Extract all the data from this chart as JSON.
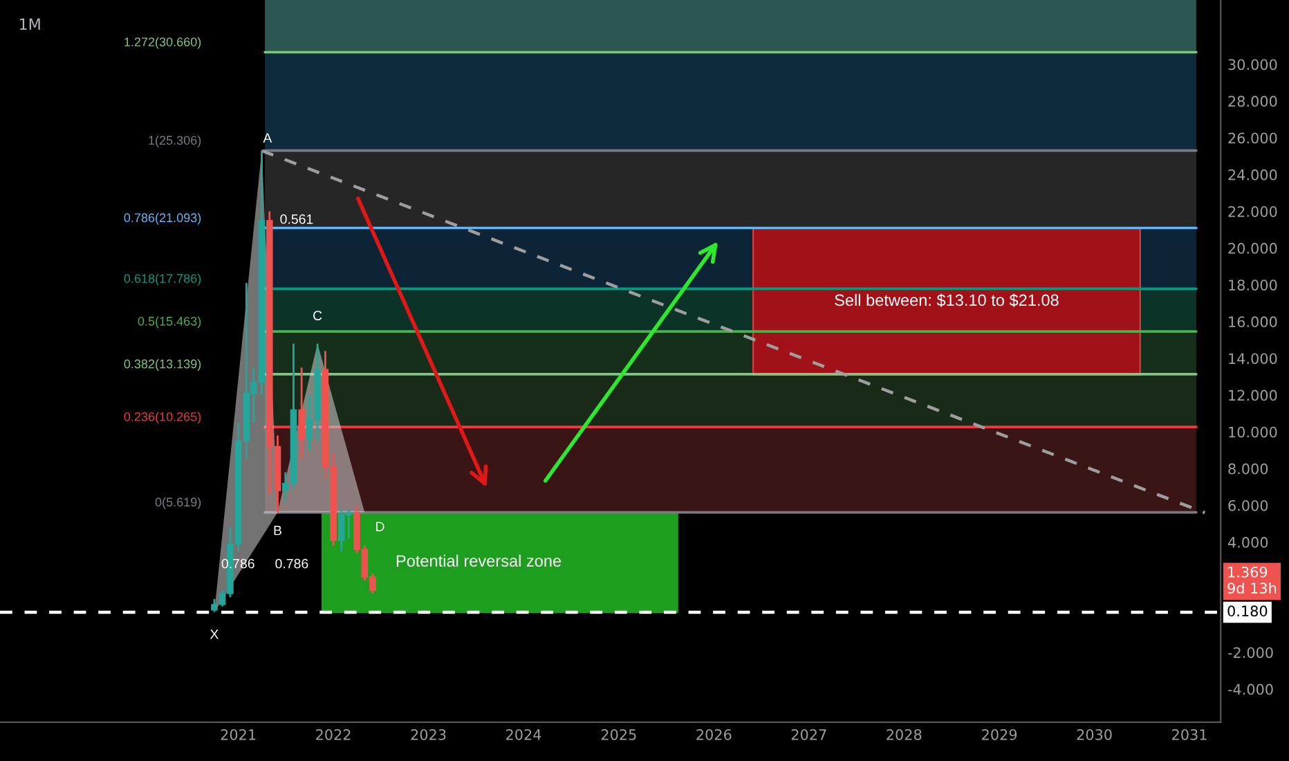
{
  "chart_data": {
    "type": "candlestick",
    "title": "1M",
    "x": [
      "2020-10",
      "2020-11",
      "2020-12",
      "2021-01",
      "2021-02",
      "2021-03",
      "2021-04",
      "2021-05",
      "2021-06",
      "2021-07",
      "2021-08",
      "2021-09",
      "2021-10",
      "2021-11",
      "2021-12",
      "2022-01",
      "2022-02",
      "2022-03",
      "2022-04",
      "2022-05",
      "2022-06"
    ],
    "ohlc": [
      [
        0.3,
        0.9,
        0.2,
        0.6
      ],
      [
        0.6,
        1.4,
        0.5,
        1.2
      ],
      [
        1.2,
        4.8,
        1.0,
        3.9
      ],
      [
        3.9,
        10.5,
        3.5,
        9.5
      ],
      [
        9.5,
        18.1,
        8.5,
        12.1
      ],
      [
        12.1,
        13.5,
        10.5,
        12.7
      ],
      [
        12.7,
        25.306,
        12.0,
        21.5
      ],
      [
        21.5,
        22.0,
        6.6,
        9.2
      ],
      [
        9.2,
        9.8,
        5.62,
        6.8
      ],
      [
        6.8,
        7.8,
        6.2,
        7.2
      ],
      [
        7.2,
        14.8,
        6.9,
        11.2
      ],
      [
        11.2,
        13.5,
        8.5,
        9.6
      ],
      [
        9.6,
        12.0,
        9.0,
        10.7
      ],
      [
        10.7,
        14.8,
        9.5,
        13.4
      ],
      [
        13.4,
        14.4,
        7.5,
        8.1
      ],
      [
        8.1,
        8.8,
        3.8,
        4.1
      ],
      [
        4.1,
        5.8,
        3.5,
        5.5
      ],
      [
        5.5,
        5.8,
        4.2,
        5.6
      ],
      [
        5.6,
        6.0,
        3.4,
        3.6
      ],
      [
        3.6,
        3.8,
        1.9,
        2.1
      ],
      [
        2.1,
        2.3,
        1.2,
        1.369
      ]
    ],
    "colors": [
      "#26a69a",
      "#26a69a",
      "#26a69a",
      "#26a69a",
      "#26a69a",
      "#26a69a",
      "#26a69a",
      "#ef5350",
      "#ef5350",
      "#26a69a",
      "#26a69a",
      "#ef5350",
      "#26a69a",
      "#26a69a",
      "#ef5350",
      "#ef5350",
      "#26a69a",
      "#26a69a",
      "#ef5350",
      "#ef5350",
      "#ef5350"
    ],
    "series": [
      {
        "type": "line",
        "color": "#9e9e9e",
        "line_style": "dashed",
        "x": [
          "2021-04",
          "2031-03"
        ],
        "values": [
          25.3,
          5.6
        ]
      }
    ],
    "ref_lines": [
      {
        "axis": "y",
        "value": 30.66,
        "label": "1.272(30.660)",
        "color": "#81c784"
      },
      {
        "axis": "y",
        "value": 25.306,
        "label": "1(25.306)",
        "color": "#787b86"
      },
      {
        "axis": "y",
        "value": 21.093,
        "label": "0.786(21.093)",
        "color": "#64b5f6"
      },
      {
        "axis": "y",
        "value": 17.786,
        "label": "0.618(17.786)",
        "color": "#089981"
      },
      {
        "axis": "y",
        "value": 15.463,
        "label": "0.5(15.463)",
        "color": "#4caf50"
      },
      {
        "axis": "y",
        "value": 13.139,
        "label": "0.382(13.139)",
        "color": "#81c784"
      },
      {
        "axis": "y",
        "value": 10.265,
        "label": "0.236(10.265)",
        "color": "#f23645"
      },
      {
        "axis": "y",
        "value": 5.619,
        "label": "0(5.619)",
        "color": "#787b86"
      },
      {
        "axis": "y",
        "value": 0.18,
        "label": "0.180",
        "color": "#ffffff",
        "line_style": "dashed"
      }
    ],
    "bands": [
      {
        "axis": "y",
        "from": 30.66,
        "to": 33.5,
        "color": "#2b5652"
      },
      {
        "axis": "y",
        "from": 25.306,
        "to": 30.66,
        "color": "#0e2a3d"
      },
      {
        "axis": "y",
        "from": 21.093,
        "to": 25.306,
        "color": "#262626"
      },
      {
        "axis": "y",
        "from": 17.786,
        "to": 21.093,
        "color": "#0d2336"
      },
      {
        "axis": "y",
        "from": 15.463,
        "to": 17.786,
        "color": "#0c3328"
      },
      {
        "axis": "y",
        "from": 13.139,
        "to": 15.463,
        "color": "#162f1a"
      },
      {
        "axis": "y",
        "from": 10.265,
        "to": 13.139,
        "color": "#1a2a18"
      },
      {
        "axis": "y",
        "from": 5.619,
        "to": 10.265,
        "color": "#3a1515"
      },
      {
        "axis": "y",
        "from": 0.18,
        "to": 5.62,
        "label": "Potential reversal zone",
        "color": "#1e9e1e"
      },
      {
        "axis": "y",
        "from": 13.1,
        "to": 21.08,
        "label": "Sell between: $13.10 to $21.08",
        "color": "#a01218"
      }
    ],
    "annotations": [
      {
        "text": "X",
        "x": "2020-10",
        "y": 0.18
      },
      {
        "text": "A",
        "x": "2021-04",
        "y": 25.306
      },
      {
        "text": "B",
        "x": "2021-06",
        "y": 5.62
      },
      {
        "text": "C",
        "x": "2021-11",
        "y": 14.8
      },
      {
        "text": "D",
        "x": "2022-05",
        "y": 5.62
      },
      "0.786",
      "0.786",
      "0.561",
      "1.369\n9d 13h"
    ],
    "xlim": [
      "2018-07",
      "2031-05"
    ],
    "ylim": [
      -5.8,
      33.5
    ],
    "xticks": [
      "2021",
      "2022",
      "2023",
      "2024",
      "2025",
      "2026",
      "2027",
      "2028",
      "2029",
      "2030",
      "2031"
    ],
    "yticks": [
      {
        "value": -4,
        "label": "-4.000"
      },
      {
        "value": -2,
        "label": "-2.000"
      },
      {
        "value": 4,
        "label": "4.000"
      },
      {
        "value": 6,
        "label": "6.000"
      },
      {
        "value": 8,
        "label": "8.000"
      },
      {
        "value": 10,
        "label": "10.000"
      },
      {
        "value": 12,
        "label": "12.000"
      },
      {
        "value": 14,
        "label": "14.000"
      },
      {
        "value": 16,
        "label": "16.000"
      },
      {
        "value": 18,
        "label": "18.000"
      },
      {
        "value": 20,
        "label": "20.000"
      },
      {
        "value": 22,
        "label": "22.000"
      },
      {
        "value": 24,
        "label": "24.000"
      },
      {
        "value": 26,
        "label": "26.000"
      },
      {
        "value": 28,
        "label": "28.000"
      },
      {
        "value": 30,
        "label": "30.000"
      }
    ],
    "grid": false,
    "legend": false
  }
}
